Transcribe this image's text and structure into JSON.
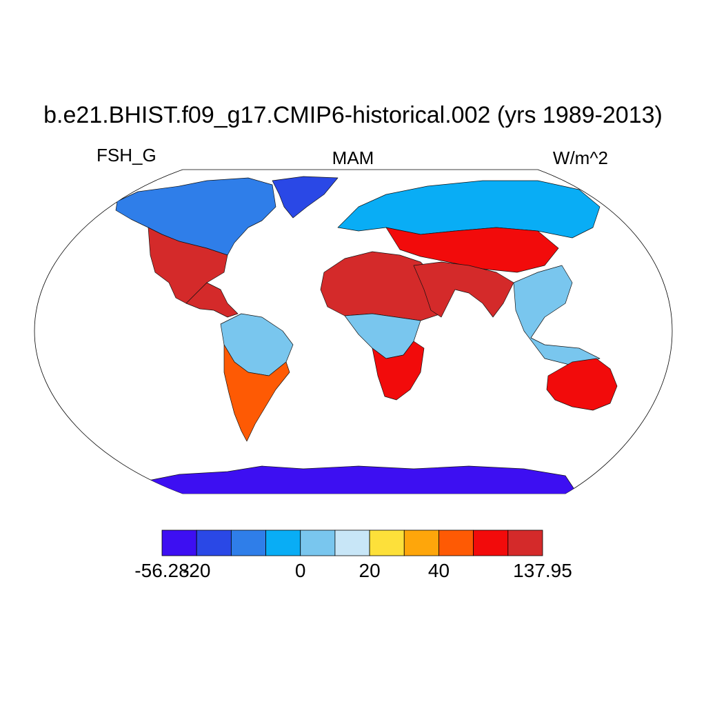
{
  "figure": {
    "title": "b.e21.BHIST.f09_g17.CMIP6-historical.002 (yrs 1989-2013)",
    "variable": "FSH_G",
    "season": "MAM",
    "units": "W/m^2"
  },
  "colorbar": {
    "colors": [
      "#3d0ff2",
      "#2a48e6",
      "#2f7ee9",
      "#09adf5",
      "#79c6ee",
      "#c8e6f7",
      "#fde03a",
      "#fea60b",
      "#fe5a04",
      "#f20b0b",
      "#d42a2a"
    ],
    "labels": [
      {
        "text": "-56.28",
        "boundary": 0
      },
      {
        "text": "-20",
        "boundary": 1
      },
      {
        "text": "0",
        "boundary": 4
      },
      {
        "text": "20",
        "boundary": 6
      },
      {
        "text": "40",
        "boundary": 8
      },
      {
        "text": "137.95",
        "boundary": 11
      }
    ]
  },
  "map_regions": [
    {
      "name": "greenland",
      "color": "#2a48e6"
    },
    {
      "name": "north-america-north",
      "color": "#2f7ee9"
    },
    {
      "name": "north-america-southwest",
      "color": "#d42a2a"
    },
    {
      "name": "south-america-amazon",
      "color": "#79c6ee"
    },
    {
      "name": "south-america-south",
      "color": "#fe5a04"
    },
    {
      "name": "sahara",
      "color": "#d42a2a"
    },
    {
      "name": "central-africa",
      "color": "#79c6ee"
    },
    {
      "name": "southern-africa",
      "color": "#f20b0b"
    },
    {
      "name": "eurasia-north",
      "color": "#09adf5"
    },
    {
      "name": "central-asia",
      "color": "#f20b0b"
    },
    {
      "name": "arabia-india",
      "color": "#d42a2a"
    },
    {
      "name": "southeast-asia",
      "color": "#79c6ee"
    },
    {
      "name": "australia",
      "color": "#f20b0b"
    },
    {
      "name": "antarctica",
      "color": "#3d0ff2"
    }
  ]
}
